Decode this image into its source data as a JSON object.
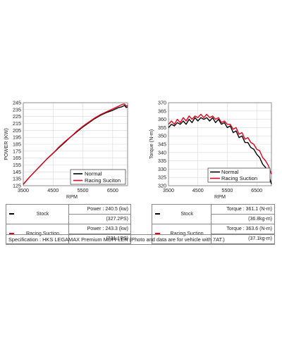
{
  "colors": {
    "normal": "#000000",
    "racing": "#e8001c",
    "grid": "#d8d8d8",
    "frame": "#777777"
  },
  "chart_data": [
    {
      "type": "line",
      "ylabel": "POWER (KW)",
      "xlabel": "RPM",
      "xlim": [
        3500,
        7000
      ],
      "ylim": [
        125,
        245
      ],
      "xticks": [
        3500,
        4500,
        5500,
        6500
      ],
      "yticks": [
        125,
        135,
        145,
        155,
        165,
        175,
        185,
        195,
        205,
        215,
        225,
        235,
        245
      ],
      "grid": true,
      "legend_position": "bottom-right",
      "series": [
        {
          "name": "Normal",
          "color": "#000000",
          "x": [
            3500,
            3700,
            3900,
            4100,
            4300,
            4500,
            4700,
            4900,
            5100,
            5300,
            5500,
            5700,
            5900,
            6100,
            6300,
            6500,
            6600,
            6700,
            6800,
            6850,
            6900,
            6950,
            7000
          ],
          "y": [
            127,
            137,
            146,
            155,
            164,
            172,
            180,
            188,
            196,
            203,
            210,
            216,
            222,
            227,
            231,
            234,
            236,
            238,
            239,
            240,
            241,
            238,
            239
          ]
        },
        {
          "name": "Racing Suciton",
          "color": "#e8001c",
          "x": [
            3500,
            3700,
            3900,
            4100,
            4300,
            4500,
            4700,
            4900,
            5100,
            5300,
            5500,
            5700,
            5900,
            6100,
            6300,
            6500,
            6600,
            6700,
            6800,
            6850,
            6900,
            6950,
            7000
          ],
          "y": [
            127,
            137,
            146,
            155,
            164,
            172,
            181,
            189,
            196,
            204,
            211,
            217,
            223,
            228,
            232,
            236,
            238,
            240,
            242,
            243,
            243,
            240,
            241
          ]
        }
      ]
    },
    {
      "type": "line",
      "ylabel": "Torque (N-m)",
      "xlabel": "RPM",
      "xlim": [
        3500,
        7000
      ],
      "ylim": [
        320,
        370
      ],
      "xticks": [
        3500,
        4500,
        5500,
        6500
      ],
      "yticks": [
        320,
        325,
        330,
        335,
        340,
        345,
        350,
        355,
        360,
        365,
        370
      ],
      "grid": true,
      "legend_position": "bottom-right",
      "series": [
        {
          "name": "Normal",
          "color": "#000000",
          "x": [
            3500,
            3600,
            3700,
            3800,
            3900,
            4000,
            4100,
            4200,
            4300,
            4400,
            4500,
            4600,
            4700,
            4800,
            4900,
            5000,
            5100,
            5200,
            5300,
            5400,
            5500,
            5600,
            5700,
            5800,
            5900,
            6000,
            6100,
            6200,
            6300,
            6400,
            6500,
            6600,
            6700,
            6800,
            6900,
            7000
          ],
          "y": [
            355,
            357,
            356,
            358,
            357,
            359,
            357,
            360,
            358,
            361,
            359,
            361,
            360,
            361,
            359,
            361,
            358,
            360,
            357,
            358,
            355,
            356,
            352,
            353,
            349,
            350,
            346,
            346,
            343,
            342,
            339,
            337,
            333,
            331,
            327,
            321
          ]
        },
        {
          "name": "Racing Suction",
          "color": "#e8001c",
          "x": [
            3500,
            3600,
            3700,
            3800,
            3900,
            4000,
            4100,
            4200,
            4300,
            4400,
            4500,
            4600,
            4700,
            4800,
            4900,
            5000,
            5100,
            5200,
            5300,
            5400,
            5500,
            5600,
            5700,
            5800,
            5900,
            6000,
            6100,
            6200,
            6300,
            6400,
            6500,
            6600,
            6700,
            6800,
            6900,
            7000
          ],
          "y": [
            357,
            359,
            357,
            360,
            358,
            361,
            359,
            362,
            360,
            362,
            361,
            363,
            361,
            363,
            361,
            362,
            360,
            361,
            358,
            359,
            357,
            357,
            354,
            355,
            351,
            352,
            348,
            349,
            346,
            345,
            342,
            341,
            337,
            335,
            332,
            327
          ]
        }
      ]
    }
  ],
  "power_table": {
    "rows": [
      {
        "name": "Stock",
        "value": "Power : 240.5 (kw)",
        "sub": "(327.2PS)"
      },
      {
        "name": "Racing Suction",
        "value": "Power : 243.3 (kw)",
        "sub": "(331.1PS)"
      }
    ]
  },
  "torque_table": {
    "rows": [
      {
        "name": "Stock",
        "value": "Torque : 361.1 (N-m)",
        "sub": "(36.8kg-m)"
      },
      {
        "name": "Racing Suction",
        "value": "Torque : 363.6 (N-m)",
        "sub": "(37.1kg-m)"
      }
    ]
  },
  "specification": "Specification : HKS LEGAMAX Premium MUFFLER (Photo and data are for vehicle with 7AT.)"
}
